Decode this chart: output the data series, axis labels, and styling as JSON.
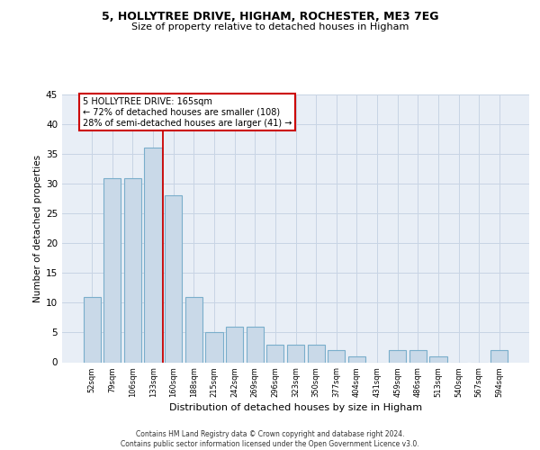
{
  "title1": "5, HOLLYTREE DRIVE, HIGHAM, ROCHESTER, ME3 7EG",
  "title2": "Size of property relative to detached houses in Higham",
  "xlabel": "Distribution of detached houses by size in Higham",
  "ylabel": "Number of detached properties",
  "categories": [
    "52sqm",
    "79sqm",
    "106sqm",
    "133sqm",
    "160sqm",
    "188sqm",
    "215sqm",
    "242sqm",
    "269sqm",
    "296sqm",
    "323sqm",
    "350sqm",
    "377sqm",
    "404sqm",
    "431sqm",
    "459sqm",
    "486sqm",
    "513sqm",
    "540sqm",
    "567sqm",
    "594sqm"
  ],
  "values": [
    11,
    31,
    31,
    36,
    28,
    11,
    5,
    6,
    6,
    3,
    3,
    3,
    2,
    1,
    0,
    2,
    2,
    1,
    0,
    0,
    2
  ],
  "bar_color": "#c9d9e8",
  "bar_edge_color": "#7aaecb",
  "grid_color": "#c8d4e4",
  "background_color": "#e8eef6",
  "vline_color": "#cc0000",
  "annotation_line1": "5 HOLLYTREE DRIVE: 165sqm",
  "annotation_line2": "← 72% of detached houses are smaller (108)",
  "annotation_line3": "28% of semi-detached houses are larger (41) →",
  "annotation_box_color": "#cc0000",
  "footer_text": "Contains HM Land Registry data © Crown copyright and database right 2024.\nContains public sector information licensed under the Open Government Licence v3.0.",
  "ylim": [
    0,
    45
  ],
  "yticks": [
    0,
    5,
    10,
    15,
    20,
    25,
    30,
    35,
    40,
    45
  ]
}
